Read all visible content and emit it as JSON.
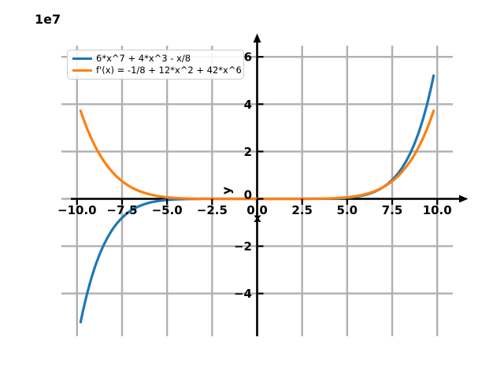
{
  "figure": {
    "background": "#ffffff"
  },
  "chart_data": {
    "type": "line",
    "title": "",
    "xlabel": "x",
    "ylabel": "y",
    "y_offset_label": "1e7",
    "y_unit_factor": 10000000,
    "xlim": [
      -10.87,
      10.87
    ],
    "ylim_1e7": [
      -5.8,
      6.45
    ],
    "grid": true,
    "grid_color": "#b0b0b0",
    "axis_color": "#000000",
    "legend_position": "upper left",
    "xticks": [
      -10,
      -7.5,
      -5,
      -2.5,
      0,
      2.5,
      5,
      7.5,
      10
    ],
    "xtick_labels": [
      "−10.0",
      "−7.5",
      "−5.0",
      "−2.5",
      "0.0",
      "2.5",
      "5.0",
      "7.5",
      "10.0"
    ],
    "yticks_1e7": [
      6,
      4,
      2,
      0,
      -2,
      -4
    ],
    "ytick_labels": [
      "6",
      "4",
      "2",
      "0",
      "−2",
      "−4"
    ],
    "series": [
      {
        "label": "6*x^7 + 4*x^3 - x/8",
        "color": "#1f77b4",
        "terms": [
          [
            6,
            7
          ],
          [
            4,
            3
          ],
          [
            -0.125,
            1
          ]
        ],
        "domain": [
          -9.8,
          9.8
        ]
      },
      {
        "label": "f'(x) = -1/8 + 12*x^2 + 42*x^6",
        "color": "#ff7f0e",
        "terms": [
          [
            42,
            6
          ],
          [
            12,
            2
          ],
          [
            -0.125,
            0
          ]
        ],
        "domain": [
          -9.8,
          9.8
        ]
      }
    ],
    "samples": {
      "x": [
        -9.8,
        -7.5,
        -5,
        -2.5,
        0,
        2.5,
        5,
        7.5,
        9.8
      ],
      "series_values_1e7": [
        [
          -5.209,
          -0.801,
          -0.047,
          -0.0004,
          0,
          0.0004,
          0.047,
          0.801,
          5.209
        ],
        [
          3.721,
          0.748,
          0.066,
          0.001,
          0,
          0.001,
          0.066,
          0.748,
          3.721
        ]
      ]
    }
  }
}
